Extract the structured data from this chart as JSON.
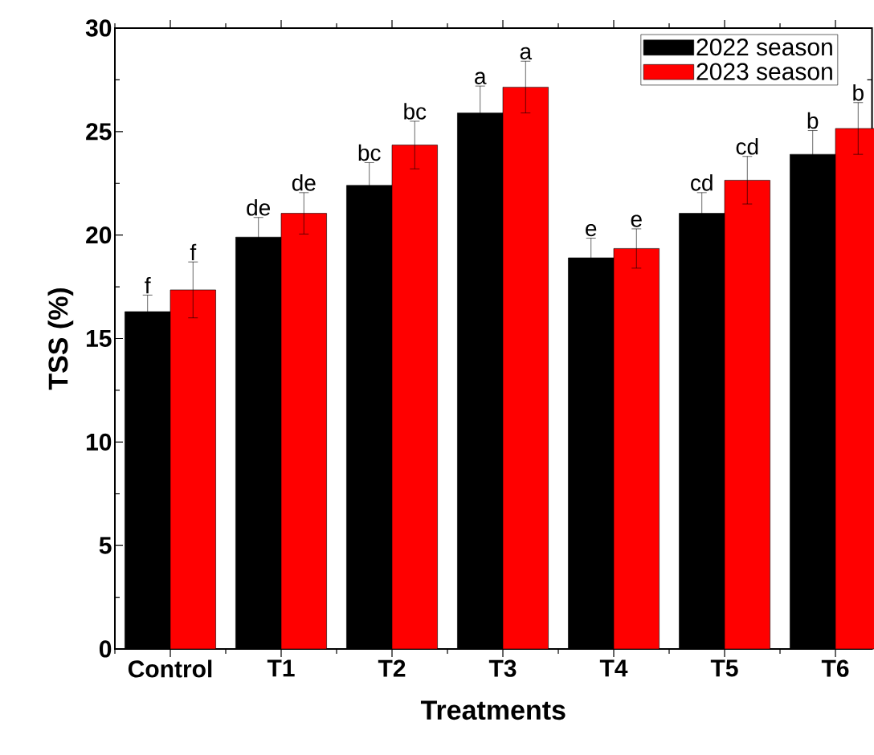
{
  "chart_data": {
    "type": "bar",
    "xlabel": "Treatments",
    "ylabel": "TSS (%)",
    "categories": [
      "Control",
      "T1",
      "T2",
      "T3",
      "T4",
      "T5",
      "T6"
    ],
    "series": [
      {
        "name": "2022 season",
        "color": "#000000",
        "values": [
          16.3,
          19.9,
          22.4,
          25.9,
          18.9,
          21.05,
          23.9
        ],
        "errors": [
          0.8,
          0.95,
          1.1,
          1.3,
          0.95,
          1.0,
          1.15
        ],
        "value_labels": [
          "f",
          "de",
          "bc",
          "a",
          "e",
          "cd",
          "b"
        ]
      },
      {
        "name": "2023 season",
        "color": "#ff0000",
        "values": [
          17.35,
          21.05,
          24.35,
          27.15,
          19.35,
          22.65,
          25.15
        ],
        "errors": [
          1.35,
          1.0,
          1.15,
          1.25,
          0.95,
          1.15,
          1.25
        ],
        "value_labels": [
          "f",
          "de",
          "bc",
          "a",
          "e",
          "cd",
          "b"
        ]
      }
    ],
    "ylim": [
      0,
      30
    ],
    "yticks": [
      0,
      5,
      10,
      15,
      20,
      25,
      30
    ],
    "legend": "top right"
  }
}
